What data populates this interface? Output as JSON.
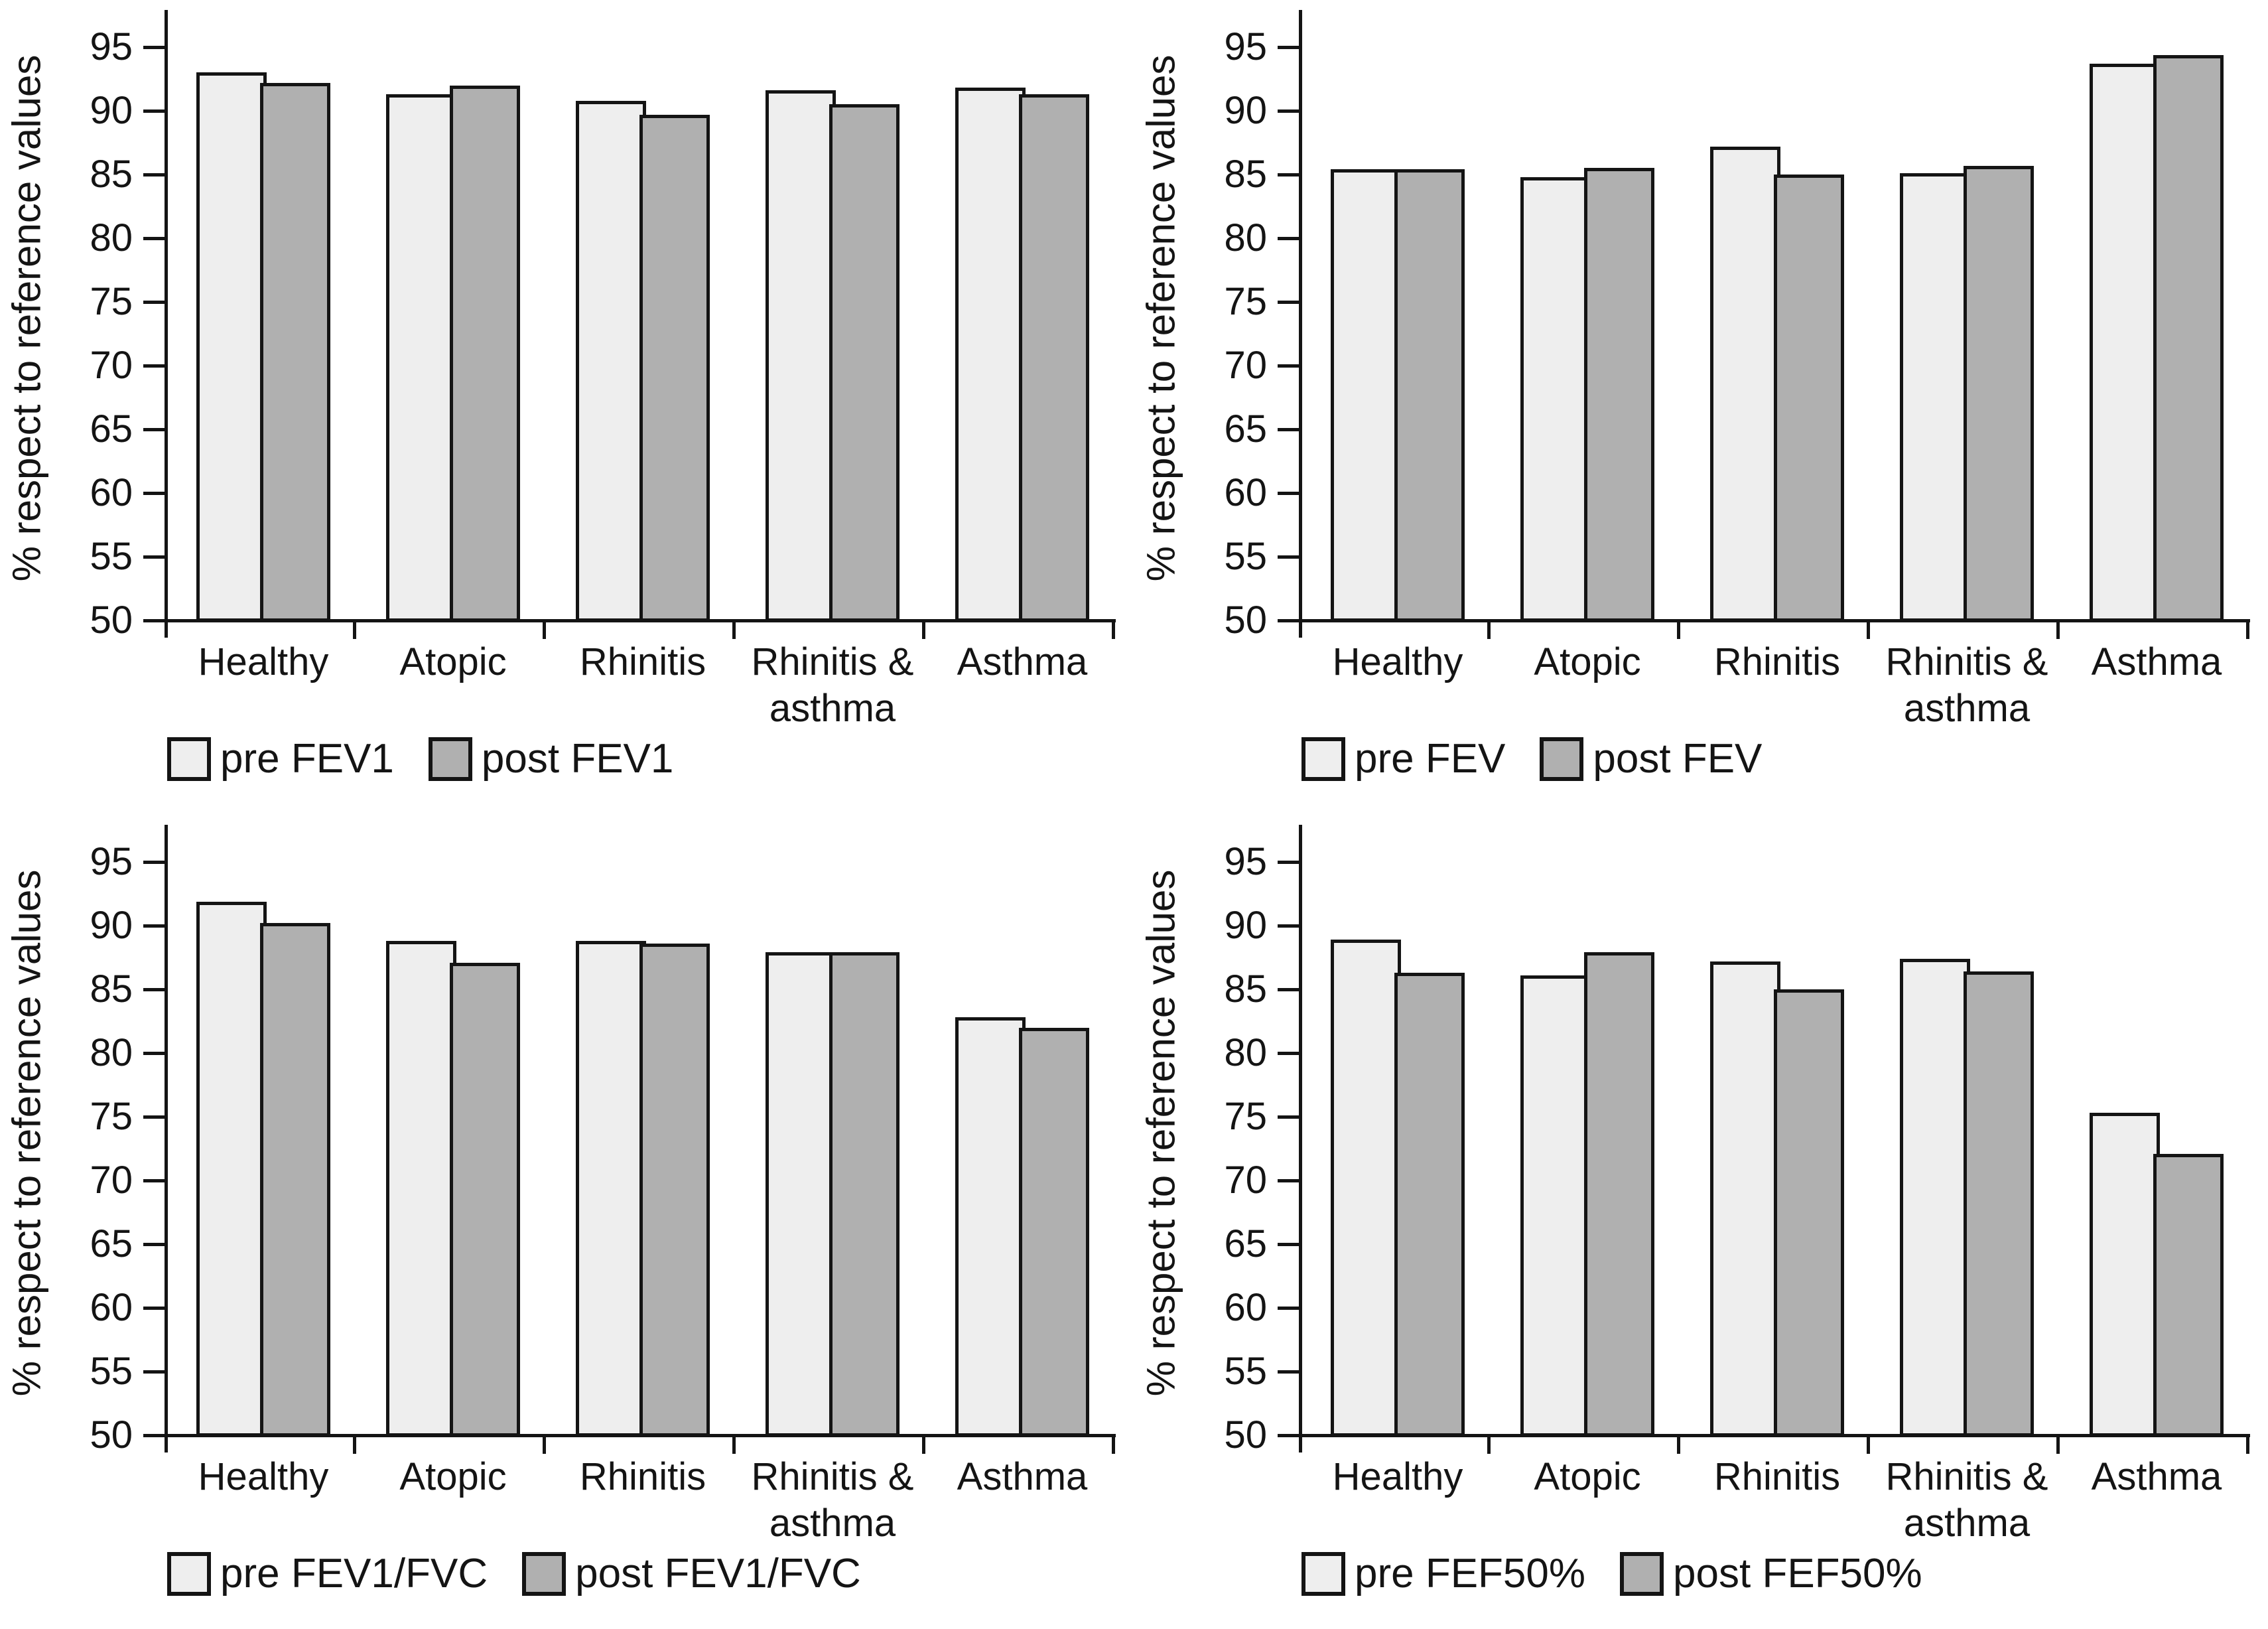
{
  "figure": {
    "background": "#ffffff",
    "ink_color": "#141414",
    "pre_fill": "#eeeeee",
    "post_fill": "#b0b0b0"
  },
  "chart_data": [
    {
      "id": "fev1",
      "position": "top-left",
      "type": "bar",
      "title": "",
      "xlabel": "",
      "ylabel": "% respect to reference values",
      "ylim": [
        50,
        97.9
      ],
      "yticks": [
        50,
        55,
        60,
        65,
        70,
        75,
        80,
        85,
        90,
        95
      ],
      "grid": false,
      "legend_position": "bottom-left",
      "categories": [
        [
          "Healthy"
        ],
        [
          "Atopic"
        ],
        [
          "Rhinitis"
        ],
        [
          "Rhinitis &",
          "asthma"
        ],
        [
          "Asthma"
        ]
      ],
      "series": [
        {
          "name": "pre FEV1",
          "fill": "#eeeeee",
          "values": [
            93.0,
            91.3,
            90.8,
            91.6,
            91.8
          ]
        },
        {
          "name": "post FEV1",
          "fill": "#b0b0b0",
          "values": [
            92.2,
            92.0,
            89.7,
            90.5,
            91.3
          ]
        }
      ]
    },
    {
      "id": "fev",
      "position": "top-right",
      "type": "bar",
      "title": "",
      "xlabel": "",
      "ylabel": "% respect to reference values",
      "ylim": [
        50,
        97.9
      ],
      "yticks": [
        50,
        55,
        60,
        65,
        70,
        75,
        80,
        85,
        90,
        95
      ],
      "grid": false,
      "legend_position": "bottom-left",
      "categories": [
        [
          "Healthy"
        ],
        [
          "Atopic"
        ],
        [
          "Rhinitis"
        ],
        [
          "Rhinitis &",
          "asthma"
        ],
        [
          "Asthma"
        ]
      ],
      "series": [
        {
          "name": "pre FEV",
          "fill": "#eeeeee",
          "values": [
            85.4,
            84.8,
            87.2,
            85.1,
            93.7
          ]
        },
        {
          "name": "post FEV",
          "fill": "#b0b0b0",
          "values": [
            85.4,
            85.5,
            85.0,
            85.7,
            94.4
          ]
        }
      ]
    },
    {
      "id": "fev1-fvc",
      "position": "bottom-left",
      "type": "bar",
      "title": "",
      "xlabel": "",
      "ylabel": "% respect to reference values",
      "ylim": [
        50,
        97.9
      ],
      "yticks": [
        50,
        55,
        60,
        65,
        70,
        75,
        80,
        85,
        90,
        95
      ],
      "grid": false,
      "legend_position": "bottom-left",
      "categories": [
        [
          "Healthy"
        ],
        [
          "Atopic"
        ],
        [
          "Rhinitis"
        ],
        [
          "Rhinitis &",
          "asthma"
        ],
        [
          "Asthma"
        ]
      ],
      "series": [
        {
          "name": "pre FEV1/FVC",
          "fill": "#eeeeee",
          "values": [
            91.9,
            88.8,
            88.8,
            87.9,
            82.8
          ]
        },
        {
          "name": "post FEV1/FVC",
          "fill": "#b0b0b0",
          "values": [
            90.2,
            87.1,
            88.6,
            87.9,
            82.0
          ]
        }
      ]
    },
    {
      "id": "fef50",
      "position": "bottom-right",
      "type": "bar",
      "title": "",
      "xlabel": "",
      "ylabel": "% respect to reference values",
      "ylim": [
        50,
        97.9
      ],
      "yticks": [
        50,
        55,
        60,
        65,
        70,
        75,
        80,
        85,
        90,
        95
      ],
      "grid": false,
      "legend_position": "bottom-left",
      "categories": [
        [
          "Healthy"
        ],
        [
          "Atopic"
        ],
        [
          "Rhinitis"
        ],
        [
          "Rhinitis &",
          "asthma"
        ],
        [
          "Asthma"
        ]
      ],
      "series": [
        {
          "name": "pre FEF50%",
          "fill": "#eeeeee",
          "values": [
            88.9,
            86.1,
            87.2,
            87.4,
            75.3
          ]
        },
        {
          "name": "post FEF50%",
          "fill": "#b0b0b0",
          "values": [
            86.3,
            87.9,
            85.0,
            86.4,
            72.1
          ]
        }
      ]
    }
  ]
}
